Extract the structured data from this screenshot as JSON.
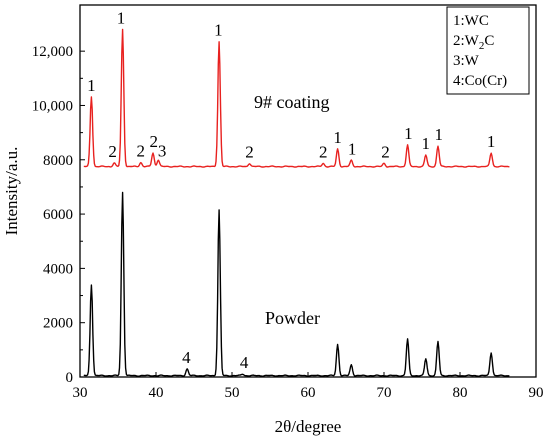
{
  "chart_data": {
    "type": "line",
    "xlabel": "2θ/degree",
    "ylabel": "Intensity/a.u.",
    "xlim": [
      30,
      90
    ],
    "ylim": [
      0,
      13700
    ],
    "xticks": [
      "30",
      "40",
      "50",
      "60",
      "70",
      "80",
      "90"
    ],
    "yticks": [
      "0",
      "2000",
      "4000",
      "6000",
      "8000",
      "10,000",
      "12,000"
    ],
    "grid": false,
    "legend_box": {
      "position": "top-right",
      "entries": [
        {
          "num": "1:",
          "text": "WC"
        },
        {
          "num": "2:",
          "text": "W",
          "sub": "2",
          "after": "C"
        },
        {
          "num": "3:",
          "text": "W"
        },
        {
          "num": "4:",
          "text": "Co(Cr)"
        }
      ]
    },
    "series": [
      {
        "name": "9# coating",
        "color": "#e8211f",
        "baseline": 7750,
        "peaks": [
          {
            "x": 31.5,
            "y": 10320
          },
          {
            "x": 34.5,
            "y": 7880
          },
          {
            "x": 35.6,
            "y": 12800
          },
          {
            "x": 38.0,
            "y": 7900
          },
          {
            "x": 39.6,
            "y": 8250
          },
          {
            "x": 40.3,
            "y": 8000
          },
          {
            "x": 48.3,
            "y": 12350
          },
          {
            "x": 52.3,
            "y": 7870
          },
          {
            "x": 62.0,
            "y": 7870
          },
          {
            "x": 63.9,
            "y": 8400
          },
          {
            "x": 65.7,
            "y": 7980
          },
          {
            "x": 70.0,
            "y": 7870
          },
          {
            "x": 73.1,
            "y": 8550
          },
          {
            "x": 75.5,
            "y": 8170
          },
          {
            "x": 77.1,
            "y": 8500
          },
          {
            "x": 84.1,
            "y": 8250
          }
        ]
      },
      {
        "name": "Powder",
        "color": "#000000",
        "baseline": 50,
        "peaks": [
          {
            "x": 31.5,
            "y": 3400
          },
          {
            "x": 35.6,
            "y": 6800
          },
          {
            "x": 44.1,
            "y": 300
          },
          {
            "x": 48.3,
            "y": 6150
          },
          {
            "x": 51.4,
            "y": 110
          },
          {
            "x": 63.9,
            "y": 1200
          },
          {
            "x": 65.7,
            "y": 450
          },
          {
            "x": 73.1,
            "y": 1400
          },
          {
            "x": 75.5,
            "y": 670
          },
          {
            "x": 77.1,
            "y": 1300
          },
          {
            "x": 84.1,
            "y": 900
          }
        ]
      }
    ],
    "annotations": [
      {
        "text": "1",
        "x": 31.5,
        "y": 10430,
        "color": "#000000"
      },
      {
        "text": "2",
        "x": 34.3,
        "y": 7990,
        "color": "#000000"
      },
      {
        "text": "1",
        "x": 35.4,
        "y": 12900,
        "color": "#000000"
      },
      {
        "text": "2",
        "x": 38.0,
        "y": 8010,
        "color": "#000000"
      },
      {
        "text": "2",
        "x": 39.7,
        "y": 8360,
        "color": "#000000"
      },
      {
        "text": "3",
        "x": 40.8,
        "y": 8010,
        "color": "#000000"
      },
      {
        "text": "1",
        "x": 48.2,
        "y": 12460,
        "color": "#000000"
      },
      {
        "text": "2",
        "x": 52.3,
        "y": 7980,
        "color": "#000000"
      },
      {
        "text": "2",
        "x": 62.0,
        "y": 7980,
        "color": "#000000"
      },
      {
        "text": "1",
        "x": 63.9,
        "y": 8510,
        "color": "#000000"
      },
      {
        "text": "1",
        "x": 65.8,
        "y": 8090,
        "color": "#000000"
      },
      {
        "text": "2",
        "x": 70.2,
        "y": 7980,
        "color": "#000000"
      },
      {
        "text": "1",
        "x": 73.2,
        "y": 8660,
        "color": "#000000"
      },
      {
        "text": "1",
        "x": 75.5,
        "y": 8280,
        "color": "#000000"
      },
      {
        "text": "1",
        "x": 77.2,
        "y": 8610,
        "color": "#000000"
      },
      {
        "text": "1",
        "x": 84.1,
        "y": 8360,
        "color": "#000000"
      },
      {
        "text": "4",
        "x": 44.0,
        "y": 410,
        "color": "#000000"
      },
      {
        "text": "4",
        "x": 51.6,
        "y": 220,
        "color": "#000000"
      }
    ]
  }
}
